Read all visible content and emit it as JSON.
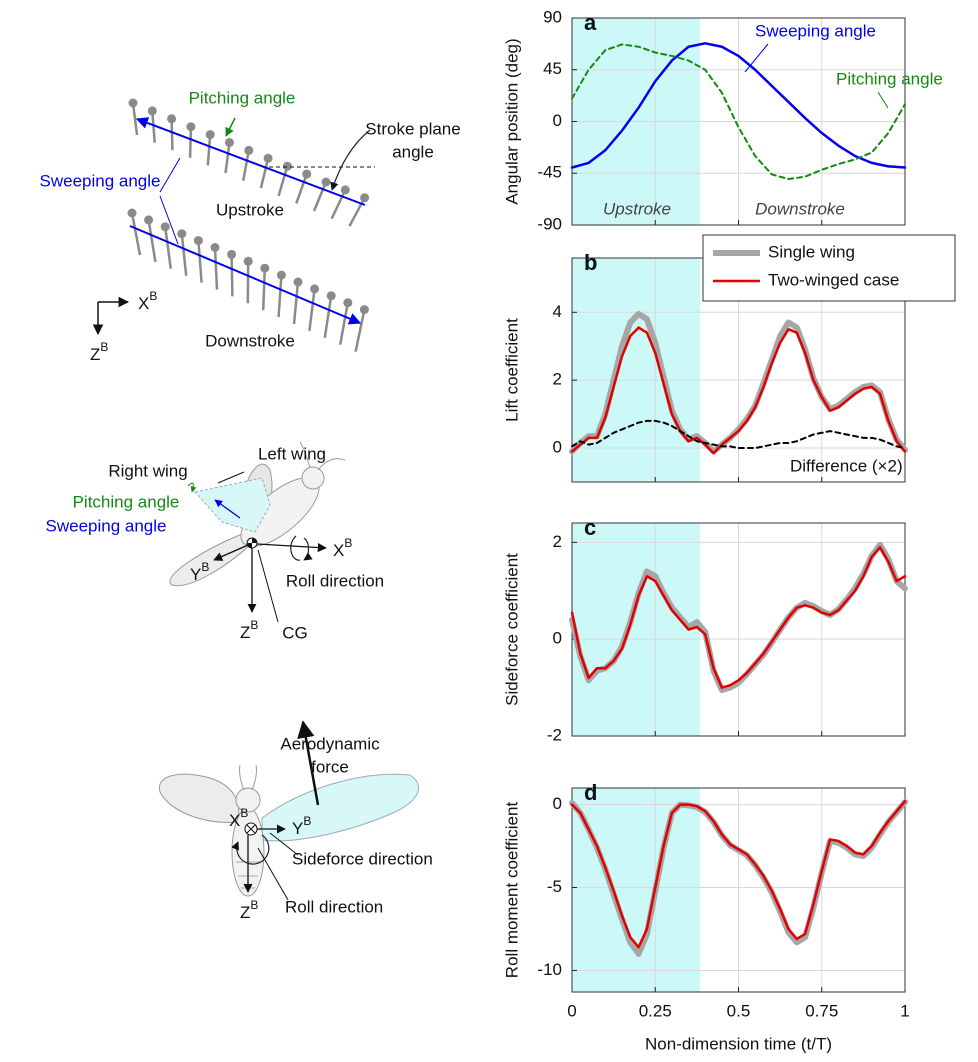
{
  "chart_data": [
    {
      "type": "line",
      "label": "a",
      "ylabel": "Angular position (deg)",
      "x": [
        0,
        0.05,
        0.1,
        0.15,
        0.2,
        0.25,
        0.3,
        0.35,
        0.4,
        0.45,
        0.5,
        0.55,
        0.6,
        0.65,
        0.7,
        0.75,
        0.8,
        0.85,
        0.9,
        0.95,
        1
      ],
      "series": [
        {
          "name": "Sweeping angle",
          "color": "#0000ee",
          "line_style": "solid",
          "values": [
            -40,
            -36,
            -25,
            -8,
            12,
            35,
            53,
            65,
            68,
            65,
            57,
            45,
            31,
            17,
            3,
            -10,
            -21,
            -30,
            -36,
            -39,
            -40
          ]
        },
        {
          "name": "Pitching angle",
          "color": "#138a13",
          "line_style": "dashed",
          "values": [
            20,
            45,
            62,
            67,
            65,
            60,
            57,
            53,
            45,
            25,
            -5,
            -30,
            -46,
            -50,
            -48,
            -42,
            -37,
            -33,
            -27,
            -10,
            15
          ]
        }
      ],
      "annotations": [
        "Upstroke",
        "Downstroke"
      ],
      "xlim": [
        0,
        1
      ],
      "xticks": [
        0,
        0.25,
        0.5,
        0.75,
        1
      ],
      "ylim": [
        -90,
        90
      ],
      "yticks": [
        -90,
        -45,
        0,
        45,
        90
      ],
      "grid": true,
      "shade": {
        "xlim": [
          0,
          0.385
        ],
        "color": "#cdf8f8"
      }
    },
    {
      "type": "line",
      "label": "b",
      "ylabel": "Lift coefficient",
      "legend": "upper right",
      "x": [
        0,
        0.025,
        0.05,
        0.075,
        0.1,
        0.125,
        0.15,
        0.175,
        0.2,
        0.225,
        0.25,
        0.275,
        0.3,
        0.325,
        0.35,
        0.375,
        0.4,
        0.425,
        0.45,
        0.475,
        0.5,
        0.525,
        0.55,
        0.575,
        0.6,
        0.625,
        0.65,
        0.675,
        0.7,
        0.725,
        0.75,
        0.775,
        0.8,
        0.825,
        0.85,
        0.875,
        0.9,
        0.925,
        0.95,
        0.975,
        1
      ],
      "series": [
        {
          "name": "Single wing",
          "color": "#a6a6a6",
          "line_style": "thick",
          "values": [
            -0.1,
            0.15,
            0.35,
            0.35,
            1.0,
            2.0,
            3.0,
            3.7,
            3.95,
            3.8,
            3.1,
            2.1,
            1.1,
            0.55,
            0.25,
            0.35,
            0.15,
            -0.1,
            0.1,
            0.3,
            0.55,
            0.85,
            1.25,
            1.9,
            2.6,
            3.3,
            3.7,
            3.55,
            2.9,
            2.05,
            1.5,
            1.15,
            1.25,
            1.45,
            1.65,
            1.8,
            1.85,
            1.65,
            0.85,
            0.25,
            -0.05
          ]
        },
        {
          "name": "Two-winged case",
          "color": "#e00000",
          "line_style": "solid",
          "values": [
            -0.1,
            0.1,
            0.3,
            0.3,
            0.9,
            1.8,
            2.7,
            3.3,
            3.55,
            3.4,
            2.8,
            1.9,
            1.0,
            0.5,
            0.2,
            0.3,
            0.1,
            -0.15,
            0.1,
            0.3,
            0.5,
            0.8,
            1.2,
            1.8,
            2.5,
            3.1,
            3.5,
            3.4,
            2.8,
            2.0,
            1.5,
            1.1,
            1.2,
            1.4,
            1.6,
            1.75,
            1.8,
            1.6,
            0.8,
            0.2,
            -0.1
          ]
        },
        {
          "name": "Difference (×2)",
          "color": "#000000",
          "line_style": "dashed",
          "values": [
            0.05,
            0.2,
            0.1,
            0.15,
            0.3,
            0.45,
            0.55,
            0.65,
            0.75,
            0.8,
            0.8,
            0.75,
            0.65,
            0.5,
            0.35,
            0.2,
            0.15,
            0.1,
            0.05,
            0.05,
            0,
            0,
            0,
            0.05,
            0.1,
            0.15,
            0.15,
            0.2,
            0.3,
            0.4,
            0.45,
            0.5,
            0.45,
            0.4,
            0.35,
            0.3,
            0.3,
            0.25,
            0.15,
            0.05,
            0
          ]
        }
      ],
      "xlim": [
        0,
        1
      ],
      "xticks": [
        0,
        0.25,
        0.5,
        0.75,
        1
      ],
      "ylim": [
        -1,
        5.6
      ],
      "yticks": [
        0,
        2,
        4
      ],
      "grid": true,
      "shade": {
        "xlim": [
          0,
          0.385
        ],
        "color": "#cdf8f8"
      }
    },
    {
      "type": "line",
      "label": "c",
      "ylabel": "Sideforce coefficient",
      "x": [
        0,
        0.025,
        0.05,
        0.075,
        0.1,
        0.125,
        0.15,
        0.175,
        0.2,
        0.225,
        0.25,
        0.275,
        0.3,
        0.325,
        0.35,
        0.375,
        0.4,
        0.425,
        0.45,
        0.475,
        0.5,
        0.525,
        0.55,
        0.575,
        0.6,
        0.625,
        0.65,
        0.675,
        0.7,
        0.725,
        0.75,
        0.775,
        0.8,
        0.825,
        0.85,
        0.875,
        0.9,
        0.925,
        0.95,
        0.975,
        1
      ],
      "series": [
        {
          "color": "#a6a6a6",
          "line_style": "thick",
          "values": [
            0.4,
            -0.35,
            -0.85,
            -0.65,
            -0.6,
            -0.45,
            -0.15,
            0.35,
            0.95,
            1.4,
            1.3,
            0.95,
            0.65,
            0.45,
            0.25,
            0.35,
            0.15,
            -0.65,
            -1.05,
            -1.0,
            -0.9,
            -0.72,
            -0.52,
            -0.32,
            -0.07,
            0.2,
            0.45,
            0.65,
            0.75,
            0.68,
            0.58,
            0.5,
            0.62,
            0.82,
            1.05,
            1.35,
            1.72,
            1.95,
            1.65,
            1.2,
            1.05
          ]
        },
        {
          "color": "#e00000",
          "line_style": "solid",
          "values": [
            0.55,
            -0.3,
            -0.8,
            -0.6,
            -0.6,
            -0.45,
            -0.2,
            0.3,
            0.9,
            1.3,
            1.2,
            0.9,
            0.6,
            0.4,
            0.2,
            0.25,
            0.1,
            -0.6,
            -1.0,
            -0.95,
            -0.85,
            -0.7,
            -0.5,
            -0.3,
            -0.05,
            0.2,
            0.45,
            0.65,
            0.7,
            0.65,
            0.55,
            0.5,
            0.6,
            0.8,
            1.0,
            1.3,
            1.7,
            1.9,
            1.6,
            1.2,
            1.3
          ]
        }
      ],
      "xlim": [
        0,
        1
      ],
      "xticks": [
        0,
        0.25,
        0.5,
        0.75,
        1
      ],
      "ylim": [
        -2,
        2.4
      ],
      "yticks": [
        -2,
        0,
        2
      ],
      "grid": true,
      "shade": {
        "xlim": [
          0,
          0.385
        ],
        "color": "#cdf8f8"
      }
    },
    {
      "type": "line",
      "label": "d",
      "ylabel": "Roll moment coefficient",
      "xlabel": "Non-dimension time (t/T)",
      "x": [
        0,
        0.025,
        0.05,
        0.075,
        0.1,
        0.125,
        0.15,
        0.175,
        0.2,
        0.225,
        0.25,
        0.275,
        0.3,
        0.325,
        0.35,
        0.375,
        0.4,
        0.425,
        0.45,
        0.475,
        0.5,
        0.525,
        0.55,
        0.575,
        0.6,
        0.625,
        0.65,
        0.675,
        0.7,
        0.725,
        0.75,
        0.775,
        0.8,
        0.825,
        0.85,
        0.875,
        0.9,
        0.925,
        0.95,
        0.975,
        1
      ],
      "series": [
        {
          "color": "#a6a6a6",
          "line_style": "thick",
          "values": [
            0.1,
            -0.5,
            -1.5,
            -2.6,
            -3.9,
            -5.4,
            -6.9,
            -8.3,
            -9.0,
            -7.8,
            -5.2,
            -2.6,
            -0.5,
            0,
            -0.05,
            -0.15,
            -0.45,
            -1.05,
            -1.85,
            -2.45,
            -2.75,
            -3.05,
            -3.65,
            -4.4,
            -5.3,
            -6.45,
            -7.7,
            -8.3,
            -8.0,
            -6.2,
            -4.1,
            -2.2,
            -2.3,
            -2.6,
            -3.0,
            -3.1,
            -2.6,
            -1.8,
            -1.05,
            -0.45,
            0.15
          ]
        },
        {
          "color": "#e00000",
          "line_style": "solid",
          "values": [
            0,
            -0.5,
            -1.5,
            -2.5,
            -3.8,
            -5.2,
            -6.7,
            -8.0,
            -8.6,
            -7.5,
            -5.0,
            -2.5,
            -0.5,
            0,
            0,
            -0.1,
            -0.4,
            -1.0,
            -1.8,
            -2.4,
            -2.7,
            -3.0,
            -3.6,
            -4.3,
            -5.2,
            -6.3,
            -7.5,
            -8.1,
            -7.8,
            -6.0,
            -4.0,
            -2.1,
            -2.2,
            -2.5,
            -2.9,
            -3.0,
            -2.5,
            -1.7,
            -1.0,
            -0.4,
            0.2
          ]
        }
      ],
      "xlim": [
        0,
        1
      ],
      "xticks": [
        0,
        0.25,
        0.5,
        0.75,
        1
      ],
      "ylim": [
        -11.3,
        1
      ],
      "yticks": [
        -10,
        -5,
        0
      ],
      "grid": true,
      "shade": {
        "xlim": [
          0,
          0.385
        ],
        "color": "#cdf8f8"
      }
    }
  ],
  "diagrams": {
    "stroke": {
      "pitching": "Pitching angle",
      "stroke_plane": [
        "Stroke plane",
        "angle"
      ],
      "sweeping": "Sweeping angle",
      "upstroke": "Upstroke",
      "downstroke": "Downstroke",
      "x_axis": {
        "main": "X",
        "sup": "B"
      },
      "z_axis": {
        "main": "Z",
        "sup": "B"
      }
    },
    "side": {
      "left_wing": "Left wing",
      "right_wing": "Right wing",
      "pitching": "Pitching angle",
      "sweeping": "Sweeping angle",
      "x_axis": {
        "main": "X",
        "sup": "B"
      },
      "y_axis": {
        "main": "Y",
        "sup": "B"
      },
      "z_axis": {
        "main": "Z",
        "sup": "B"
      },
      "roll": "Roll direction",
      "cg": "CG"
    },
    "front": {
      "force": [
        "Aerodynamic",
        "force"
      ],
      "x_axis": {
        "main": "X",
        "sup": "B"
      },
      "y_axis": {
        "main": "Y",
        "sup": "B"
      },
      "z_axis": {
        "main": "Z",
        "sup": "B"
      },
      "sideforce": "Sideforce direction",
      "roll": "Roll direction"
    }
  }
}
